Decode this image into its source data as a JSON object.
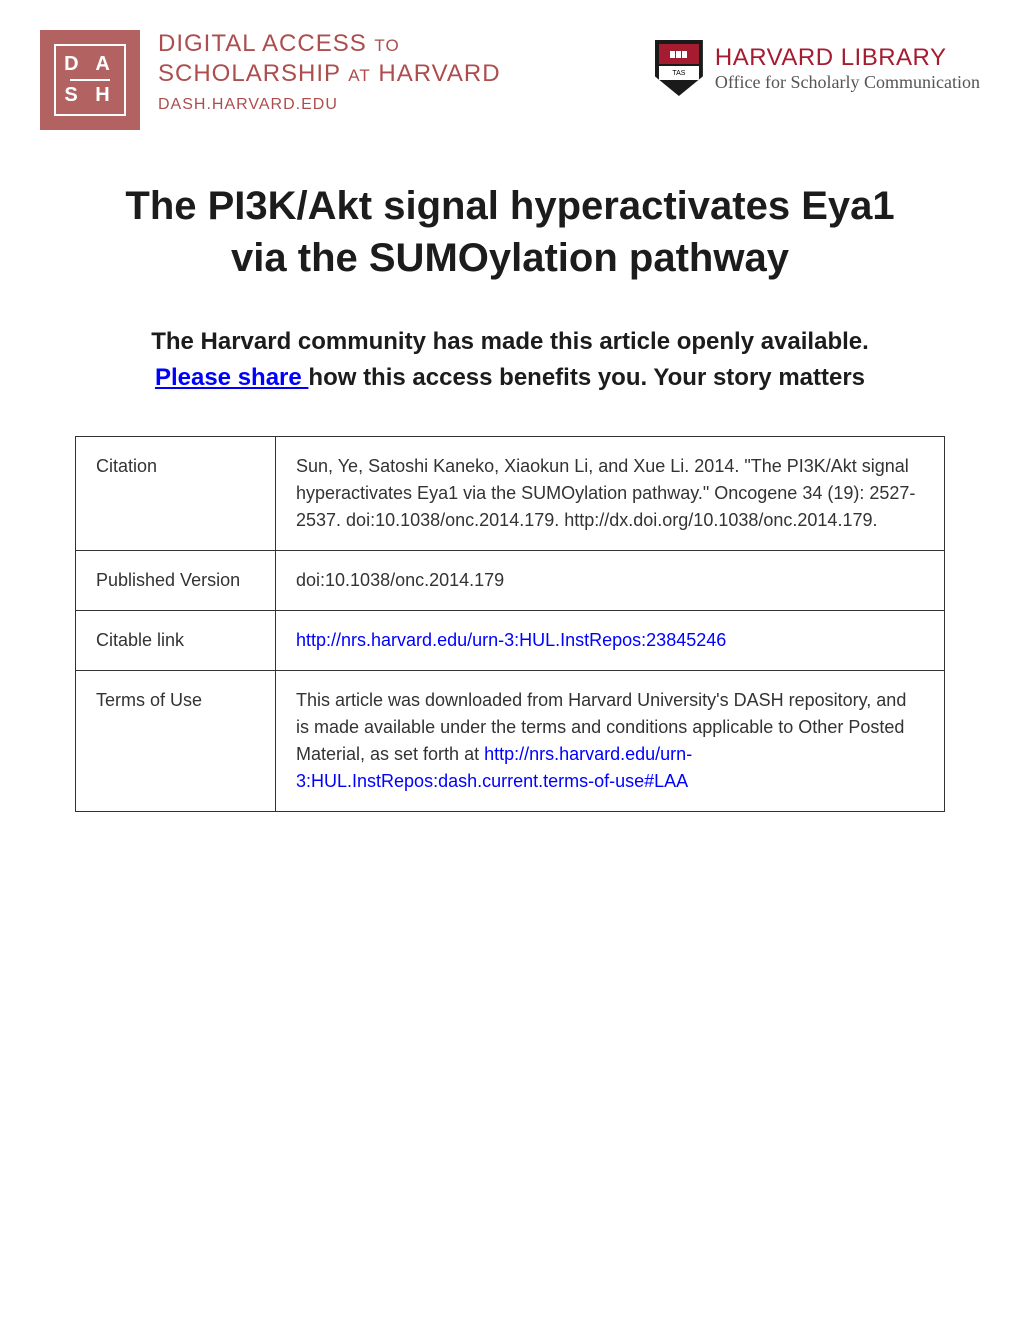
{
  "header": {
    "dash_logo": {
      "top": "D A",
      "bottom": "S H"
    },
    "dash_text": {
      "line1_large": "DIGITAL ACCESS",
      "line1_small": "TO",
      "line2_large": "SCHOLARSHIP",
      "line2_small": "AT",
      "line2_large2": "HARVARD",
      "line3": "DASH.HARVARD.EDU"
    },
    "harvard": {
      "library": "HARVARD LIBRARY",
      "office": "Office for Scholarly Communication"
    }
  },
  "title": "The PI3K/Akt signal hyperactivates Eya1 via the SUMOylation pathway",
  "subtitle": {
    "part1": "The Harvard community has made this article openly available. ",
    "link": " Please share ",
    "part2": " how this access benefits you. Your story matters"
  },
  "table": {
    "rows": [
      {
        "label": "Citation",
        "value": "Sun, Ye, Satoshi Kaneko, Xiaokun Li, and Xue Li. 2014. \"The PI3K/Akt signal hyperactivates Eya1 via the SUMOylation pathway.\" Oncogene 34 (19): 2527-2537. doi:10.1038/onc.2014.179. http://dx.doi.org/10.1038/onc.2014.179."
      },
      {
        "label": "Published Version",
        "value": "doi:10.1038/onc.2014.179"
      },
      {
        "label": "Citable link",
        "link": "http://nrs.harvard.edu/urn-3:HUL.InstRepos:23845246"
      },
      {
        "label": "Terms of Use",
        "value_part1": "This article was downloaded from Harvard University's DASH repository, and is made available under the terms and conditions applicable to Other Posted Material, as set forth at ",
        "link": "http://nrs.harvard.edu/urn-3:HUL.InstRepos:dash.current.terms-of-use#LAA"
      }
    ]
  },
  "colors": {
    "dash_red": "#ad4d4d",
    "dash_logo_bg": "#b36262",
    "harvard_crimson": "#a51c30",
    "link_blue": "#0000ff",
    "text_dark": "#1c1c1c",
    "border": "#333333"
  }
}
